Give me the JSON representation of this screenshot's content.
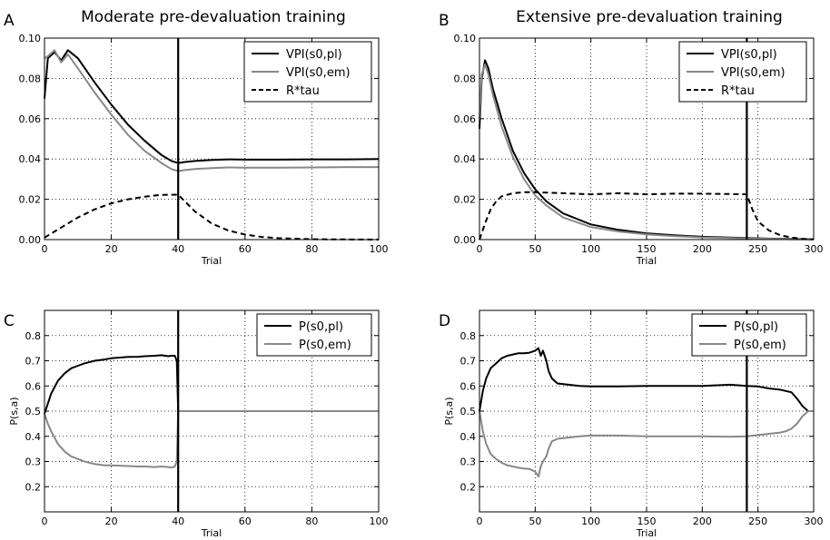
{
  "chart_data": [
    {
      "panel": "A",
      "type": "line",
      "title": "Moderate pre-devaluation training",
      "xlabel": "Trial",
      "ylabel": "",
      "xlim": [
        0,
        100
      ],
      "ylim": [
        0,
        0.1
      ],
      "xticks": [
        "0",
        "20",
        "40",
        "60",
        "80",
        "100"
      ],
      "yticks": [
        "0.00",
        "0.02",
        "0.04",
        "0.06",
        "0.08",
        "0.10"
      ],
      "grid": true,
      "legend_position": "top-right",
      "vline_x": 40,
      "series": [
        {
          "name": "VPI(s0,pl)",
          "color": "#000000",
          "style": "solid",
          "x": [
            0,
            1,
            3,
            5,
            7,
            10,
            15,
            20,
            25,
            30,
            35,
            38,
            40,
            42,
            45,
            50,
            55,
            60,
            70,
            80,
            90,
            100
          ],
          "y": [
            0.07,
            0.09,
            0.093,
            0.089,
            0.094,
            0.09,
            0.078,
            0.067,
            0.057,
            0.049,
            0.042,
            0.039,
            0.038,
            0.0385,
            0.039,
            0.0395,
            0.0398,
            0.0397,
            0.0397,
            0.0398,
            0.0398,
            0.04
          ]
        },
        {
          "name": "VPI(s0,em)",
          "color": "#888888",
          "style": "solid",
          "x": [
            0,
            1,
            3,
            5,
            7,
            10,
            15,
            20,
            25,
            30,
            35,
            38,
            40,
            42,
            45,
            50,
            55,
            60,
            70,
            80,
            90,
            100
          ],
          "y": [
            0.09,
            0.091,
            0.094,
            0.088,
            0.092,
            0.085,
            0.073,
            0.062,
            0.052,
            0.044,
            0.038,
            0.035,
            0.034,
            0.0345,
            0.035,
            0.0355,
            0.0358,
            0.0357,
            0.0357,
            0.0358,
            0.036,
            0.036
          ]
        },
        {
          "name": "R*tau",
          "color": "#000000",
          "style": "dashed",
          "x": [
            0,
            5,
            10,
            15,
            20,
            25,
            30,
            35,
            40,
            45,
            50,
            55,
            60,
            65,
            70,
            80,
            90,
            100
          ],
          "y": [
            0.001,
            0.006,
            0.011,
            0.015,
            0.018,
            0.02,
            0.0213,
            0.0222,
            0.0223,
            0.014,
            0.008,
            0.0045,
            0.0025,
            0.0013,
            0.0007,
            0.0002,
            0.0001,
            0.0
          ]
        }
      ]
    },
    {
      "panel": "B",
      "type": "line",
      "title": "Extensive pre-devaluation training",
      "xlabel": "Trial",
      "ylabel": "",
      "xlim": [
        0,
        300
      ],
      "ylim": [
        0,
        0.1
      ],
      "xticks": [
        "0",
        "50",
        "100",
        "150",
        "200",
        "250",
        "300"
      ],
      "yticks": [
        "0.00",
        "0.02",
        "0.04",
        "0.06",
        "0.08",
        "0.10"
      ],
      "grid": true,
      "legend_position": "top-right",
      "vline_x": 240,
      "series": [
        {
          "name": "VPI(s0,pl)",
          "color": "#000000",
          "style": "solid",
          "x": [
            0,
            2,
            5,
            8,
            12,
            20,
            30,
            40,
            50,
            60,
            75,
            100,
            125,
            150,
            175,
            200,
            225,
            240,
            260,
            280,
            300
          ],
          "y": [
            0.055,
            0.08,
            0.089,
            0.085,
            0.075,
            0.06,
            0.044,
            0.033,
            0.025,
            0.019,
            0.013,
            0.0075,
            0.0048,
            0.0031,
            0.0021,
            0.0014,
            0.001,
            0.0008,
            0.0005,
            0.0003,
            0.0002
          ]
        },
        {
          "name": "VPI(s0,em)",
          "color": "#888888",
          "style": "solid",
          "x": [
            0,
            2,
            5,
            8,
            12,
            20,
            30,
            40,
            50,
            60,
            75,
            100,
            125,
            150,
            175,
            200,
            225,
            240,
            260,
            280,
            300
          ],
          "y": [
            0.06,
            0.082,
            0.087,
            0.082,
            0.072,
            0.056,
            0.041,
            0.03,
            0.022,
            0.017,
            0.011,
            0.0062,
            0.004,
            0.0026,
            0.0017,
            0.0011,
            0.0008,
            0.0006,
            0.0004,
            0.0002,
            0.0001
          ]
        },
        {
          "name": "R*tau",
          "color": "#000000",
          "style": "dashed",
          "x": [
            0,
            5,
            10,
            15,
            20,
            30,
            40,
            50,
            75,
            100,
            125,
            150,
            175,
            200,
            225,
            240,
            245,
            250,
            260,
            270,
            280,
            290,
            300
          ],
          "y": [
            0.0,
            0.008,
            0.015,
            0.019,
            0.0215,
            0.023,
            0.0235,
            0.0235,
            0.023,
            0.0225,
            0.023,
            0.0225,
            0.0228,
            0.0228,
            0.0226,
            0.0225,
            0.015,
            0.009,
            0.0045,
            0.0022,
            0.001,
            0.0004,
            0.0001
          ]
        }
      ]
    },
    {
      "panel": "C",
      "type": "line",
      "title": "",
      "xlabel": "Trial",
      "ylabel": "P(s,a)",
      "xlim": [
        0,
        100
      ],
      "ylim": [
        0.1,
        0.9
      ],
      "xticks": [
        "0",
        "20",
        "40",
        "60",
        "80",
        "100"
      ],
      "yticks": [
        "0.2",
        "0.3",
        "0.4",
        "0.5",
        "0.6",
        "0.7",
        "0.8"
      ],
      "grid": true,
      "legend_position": "top-right",
      "vline_x": 40,
      "series": [
        {
          "name": "P(s0,pl)",
          "color": "#000000",
          "style": "solid",
          "x": [
            0,
            1,
            2,
            4,
            6,
            8,
            10,
            12,
            15,
            18,
            20,
            23,
            25,
            28,
            30,
            33,
            35,
            37,
            38,
            39,
            39.6,
            40,
            45,
            50,
            55,
            60,
            65,
            70,
            75,
            80,
            85,
            90,
            95,
            100
          ],
          "y": [
            0.49,
            0.53,
            0.57,
            0.62,
            0.65,
            0.67,
            0.68,
            0.69,
            0.7,
            0.705,
            0.71,
            0.713,
            0.715,
            0.716,
            0.718,
            0.72,
            0.722,
            0.718,
            0.72,
            0.72,
            0.7,
            0.5,
            0.5,
            0.5,
            0.5,
            0.5,
            0.5,
            0.5,
            0.5,
            0.5,
            0.5,
            0.5,
            0.5,
            0.5
          ]
        },
        {
          "name": "P(s0,em)",
          "color": "#888888",
          "style": "solid",
          "x": [
            0,
            1,
            2,
            4,
            6,
            8,
            10,
            12,
            15,
            18,
            20,
            23,
            25,
            28,
            30,
            33,
            35,
            37,
            38,
            39,
            39.6,
            40,
            45,
            50,
            55,
            60,
            65,
            70,
            75,
            80,
            85,
            90,
            95,
            100
          ],
          "y": [
            0.49,
            0.45,
            0.42,
            0.37,
            0.34,
            0.32,
            0.31,
            0.3,
            0.29,
            0.285,
            0.285,
            0.283,
            0.282,
            0.28,
            0.28,
            0.278,
            0.28,
            0.278,
            0.276,
            0.28,
            0.3,
            0.5,
            0.5,
            0.5,
            0.5,
            0.5,
            0.5,
            0.5,
            0.5,
            0.5,
            0.5,
            0.5,
            0.5,
            0.5
          ]
        }
      ]
    },
    {
      "panel": "D",
      "type": "line",
      "title": "",
      "xlabel": "Trial",
      "ylabel": "P(s,a)",
      "xlim": [
        0,
        300
      ],
      "ylim": [
        0.1,
        0.9
      ],
      "xticks": [
        "0",
        "50",
        "100",
        "150",
        "200",
        "250",
        "300"
      ],
      "yticks": [
        "0.2",
        "0.3",
        "0.4",
        "0.5",
        "0.6",
        "0.7",
        "0.8"
      ],
      "grid": true,
      "legend_position": "top-right",
      "vline_x": 240,
      "series": [
        {
          "name": "P(s0,pl)",
          "color": "#000000",
          "style": "solid",
          "x": [
            0,
            3,
            6,
            10,
            15,
            20,
            25,
            30,
            35,
            40,
            45,
            50,
            53,
            55,
            57,
            60,
            62,
            65,
            70,
            80,
            90,
            100,
            125,
            150,
            175,
            200,
            225,
            240,
            250,
            260,
            270,
            275,
            280,
            285,
            290,
            295,
            300
          ],
          "y": [
            0.5,
            0.58,
            0.63,
            0.67,
            0.69,
            0.71,
            0.72,
            0.725,
            0.73,
            0.73,
            0.732,
            0.74,
            0.75,
            0.72,
            0.74,
            0.7,
            0.66,
            0.63,
            0.61,
            0.605,
            0.6,
            0.598,
            0.598,
            0.6,
            0.6,
            0.6,
            0.605,
            0.6,
            0.598,
            0.59,
            0.585,
            0.58,
            0.575,
            0.55,
            0.52,
            0.5,
            0.5
          ]
        },
        {
          "name": "P(s0,em)",
          "color": "#888888",
          "style": "solid",
          "x": [
            0,
            3,
            6,
            10,
            15,
            20,
            25,
            30,
            35,
            40,
            45,
            50,
            53,
            55,
            57,
            60,
            62,
            65,
            70,
            80,
            90,
            100,
            125,
            150,
            175,
            200,
            225,
            240,
            250,
            260,
            270,
            275,
            280,
            285,
            290,
            295,
            300
          ],
          "y": [
            0.5,
            0.42,
            0.37,
            0.33,
            0.31,
            0.295,
            0.285,
            0.28,
            0.275,
            0.272,
            0.27,
            0.26,
            0.24,
            0.28,
            0.3,
            0.32,
            0.35,
            0.38,
            0.39,
            0.395,
            0.4,
            0.403,
            0.403,
            0.4,
            0.4,
            0.4,
            0.398,
            0.4,
            0.405,
            0.41,
            0.415,
            0.42,
            0.43,
            0.45,
            0.48,
            0.5,
            0.5
          ]
        }
      ]
    }
  ]
}
